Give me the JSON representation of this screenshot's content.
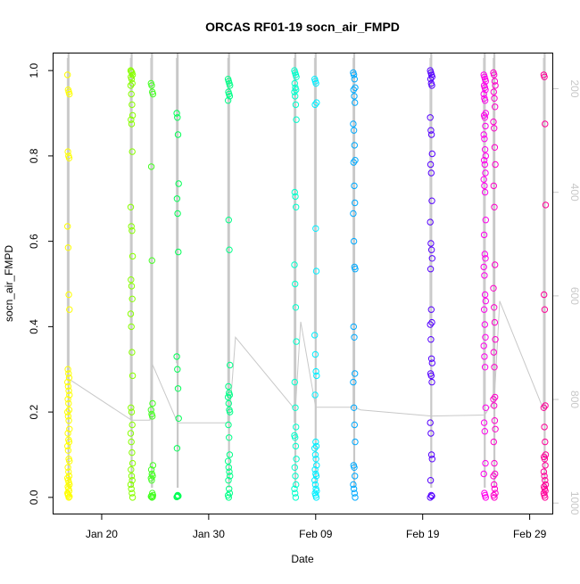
{
  "chart_data": {
    "type": "scatter",
    "title": "ORCAS RF01-19 socn_air_FMPD",
    "xlabel": "Date",
    "ylabel": "socn_air_FMPD",
    "x_unit": "days since Jan 01 2016",
    "xlim": [
      14.5,
      61.2
    ],
    "ylim": [
      -0.04,
      1.04
    ],
    "y_ticks": [
      0.0,
      0.2,
      0.4,
      0.6,
      0.8,
      1.0
    ],
    "y_tick_labels": [
      "0.0",
      "0.2",
      "0.4",
      "0.6",
      "0.8",
      "1.0"
    ],
    "x_ticks": [
      19,
      29,
      39,
      49,
      59
    ],
    "x_tick_labels": [
      "Jan 20",
      "Jan 30",
      "Feb 09",
      "Feb 19",
      "Feb 29"
    ],
    "right_axis": {
      "label": "",
      "ylim": [
        1022,
        132
      ],
      "ticks": [
        200,
        400,
        600,
        800,
        1000
      ],
      "tick_labels": [
        "200",
        "400",
        "600",
        "800",
        "1000"
      ],
      "color": "#c8c8c8"
    },
    "grid": false,
    "flights": [
      {
        "day": 15.9,
        "color": "#ffff00",
        "values": [
          0.99,
          0.955,
          0.95,
          0.945,
          0.81,
          0.8,
          0.795,
          0.635,
          0.585,
          0.475,
          0.44,
          0.3,
          0.29,
          0.28,
          0.27,
          0.26,
          0.25,
          0.24,
          0.23,
          0.22,
          0.205,
          0.2,
          0.19,
          0.18,
          0.16,
          0.15,
          0.135,
          0.13,
          0.12,
          0.11,
          0.09,
          0.085,
          0.07,
          0.06,
          0.05,
          0.045,
          0.04,
          0.035,
          0.03,
          0.025,
          0.02,
          0.015,
          0.01,
          0.005,
          0.0,
          0.002,
          0.008
        ]
      },
      {
        "day": 21.8,
        "color": "#88ff00",
        "values": [
          1.0,
          0.998,
          0.995,
          0.99,
          0.985,
          0.98,
          0.97,
          0.965,
          0.945,
          0.92,
          0.895,
          0.885,
          0.875,
          0.81,
          0.68,
          0.635,
          0.625,
          0.565,
          0.51,
          0.495,
          0.465,
          0.43,
          0.4,
          0.34,
          0.285,
          0.21,
          0.2,
          0.17,
          0.15,
          0.13,
          0.105,
          0.08,
          0.065,
          0.05,
          0.04,
          0.03,
          0.02,
          0.01,
          0.0
        ]
      },
      {
        "day": 23.7,
        "color": "#44ff22",
        "values": [
          0.97,
          0.965,
          0.95,
          0.945,
          0.775,
          0.555,
          0.22,
          0.205,
          0.195,
          0.19,
          0.075,
          0.065,
          0.055,
          0.05,
          0.045,
          0.04,
          0.01,
          0.005,
          0.003,
          0.0,
          0.001,
          0.002
        ]
      },
      {
        "day": 26.1,
        "color": "#00ff55",
        "values": [
          0.9,
          0.89,
          0.85,
          0.735,
          0.7,
          0.665,
          0.575,
          0.33,
          0.3,
          0.255,
          0.185,
          0.115,
          0.005,
          0.003,
          0.001,
          0.002,
          0.004
        ]
      },
      {
        "day": 30.9,
        "color": "#00ff88",
        "values": [
          0.98,
          0.975,
          0.97,
          0.965,
          0.95,
          0.945,
          0.94,
          0.93,
          0.65,
          0.58,
          0.31,
          0.26,
          0.245,
          0.24,
          0.235,
          0.22,
          0.205,
          0.2,
          0.17,
          0.14,
          0.1,
          0.085,
          0.07,
          0.06,
          0.05,
          0.04,
          0.02,
          0.01,
          0.005,
          0.0
        ]
      },
      {
        "day": 37.1,
        "color": "#00ffcc",
        "values": [
          1.0,
          0.995,
          0.99,
          0.985,
          0.97,
          0.96,
          0.955,
          0.95,
          0.94,
          0.92,
          0.885,
          0.715,
          0.705,
          0.68,
          0.545,
          0.5,
          0.445,
          0.365,
          0.27,
          0.21,
          0.165,
          0.145,
          0.14,
          0.12,
          0.09,
          0.07,
          0.05,
          0.03,
          0.02,
          0.01,
          0.0
        ]
      },
      {
        "day": 39.0,
        "color": "#00eeff",
        "values": [
          0.98,
          0.975,
          0.97,
          0.925,
          0.92,
          0.63,
          0.53,
          0.38,
          0.335,
          0.295,
          0.285,
          0.24,
          0.13,
          0.12,
          0.115,
          0.1,
          0.09,
          0.075,
          0.065,
          0.055,
          0.05,
          0.04,
          0.03,
          0.02,
          0.015,
          0.01,
          0.005,
          0.0
        ]
      },
      {
        "day": 42.6,
        "color": "#00aaff",
        "values": [
          0.995,
          0.99,
          0.98,
          0.96,
          0.955,
          0.94,
          0.925,
          0.875,
          0.86,
          0.825,
          0.79,
          0.785,
          0.73,
          0.69,
          0.665,
          0.6,
          0.54,
          0.535,
          0.4,
          0.375,
          0.29,
          0.27,
          0.21,
          0.17,
          0.13,
          0.075,
          0.07,
          0.05,
          0.03,
          0.02,
          0.01,
          0.0
        ]
      },
      {
        "day": 49.8,
        "color": "#5500ff",
        "values": [
          1.0,
          0.995,
          0.99,
          0.985,
          0.98,
          0.97,
          0.965,
          0.89,
          0.86,
          0.85,
          0.805,
          0.78,
          0.76,
          0.695,
          0.645,
          0.595,
          0.58,
          0.56,
          0.535,
          0.44,
          0.41,
          0.405,
          0.37,
          0.325,
          0.315,
          0.29,
          0.285,
          0.27,
          0.175,
          0.15,
          0.1,
          0.09,
          0.04,
          0.005,
          0.003,
          0.0
        ]
      },
      {
        "day": 54.8,
        "color": "#ff00ee",
        "values": [
          0.99,
          0.985,
          0.98,
          0.975,
          0.965,
          0.96,
          0.955,
          0.945,
          0.935,
          0.93,
          0.9,
          0.895,
          0.89,
          0.87,
          0.85,
          0.84,
          0.815,
          0.8,
          0.79,
          0.78,
          0.76,
          0.745,
          0.73,
          0.715,
          0.65,
          0.615,
          0.57,
          0.56,
          0.54,
          0.52,
          0.475,
          0.46,
          0.44,
          0.405,
          0.375,
          0.355,
          0.33,
          0.305,
          0.21,
          0.175,
          0.155,
          0.08,
          0.055,
          0.01,
          0.005,
          0.0
        ]
      },
      {
        "day": 55.7,
        "color": "#ff00cc",
        "values": [
          0.995,
          0.99,
          0.975,
          0.965,
          0.95,
          0.935,
          0.915,
          0.88,
          0.865,
          0.82,
          0.78,
          0.73,
          0.68,
          0.545,
          0.49,
          0.445,
          0.41,
          0.37,
          0.34,
          0.305,
          0.235,
          0.23,
          0.215,
          0.18,
          0.16,
          0.13,
          0.08,
          0.055,
          0.05,
          0.03,
          0.02,
          0.01,
          0.005,
          0.0
        ]
      },
      {
        "day": 60.4,
        "color": "#ff0099",
        "values": [
          0.99,
          0.985,
          0.875,
          0.685,
          0.475,
          0.44,
          0.215,
          0.21,
          0.165,
          0.13,
          0.1,
          0.095,
          0.09,
          0.075,
          0.06,
          0.05,
          0.04,
          0.03,
          0.025,
          0.02,
          0.015,
          0.01,
          0.005,
          0.0
        ]
      }
    ],
    "altitude_trace": {
      "color": "#c8c8c8",
      "points": [
        [
          15.9,
          760
        ],
        [
          21.8,
          840
        ],
        [
          23.5,
          840
        ],
        [
          23.7,
          730
        ],
        [
          26.1,
          845
        ],
        [
          30.9,
          845
        ],
        [
          31.5,
          680
        ],
        [
          37.1,
          820
        ],
        [
          37.6,
          650
        ],
        [
          39.0,
          815
        ],
        [
          42.6,
          815
        ],
        [
          43.2,
          820
        ],
        [
          49.8,
          832
        ],
        [
          54.8,
          830
        ],
        [
          55.7,
          800
        ],
        [
          56.2,
          610
        ],
        [
          60.4,
          825
        ]
      ]
    }
  }
}
